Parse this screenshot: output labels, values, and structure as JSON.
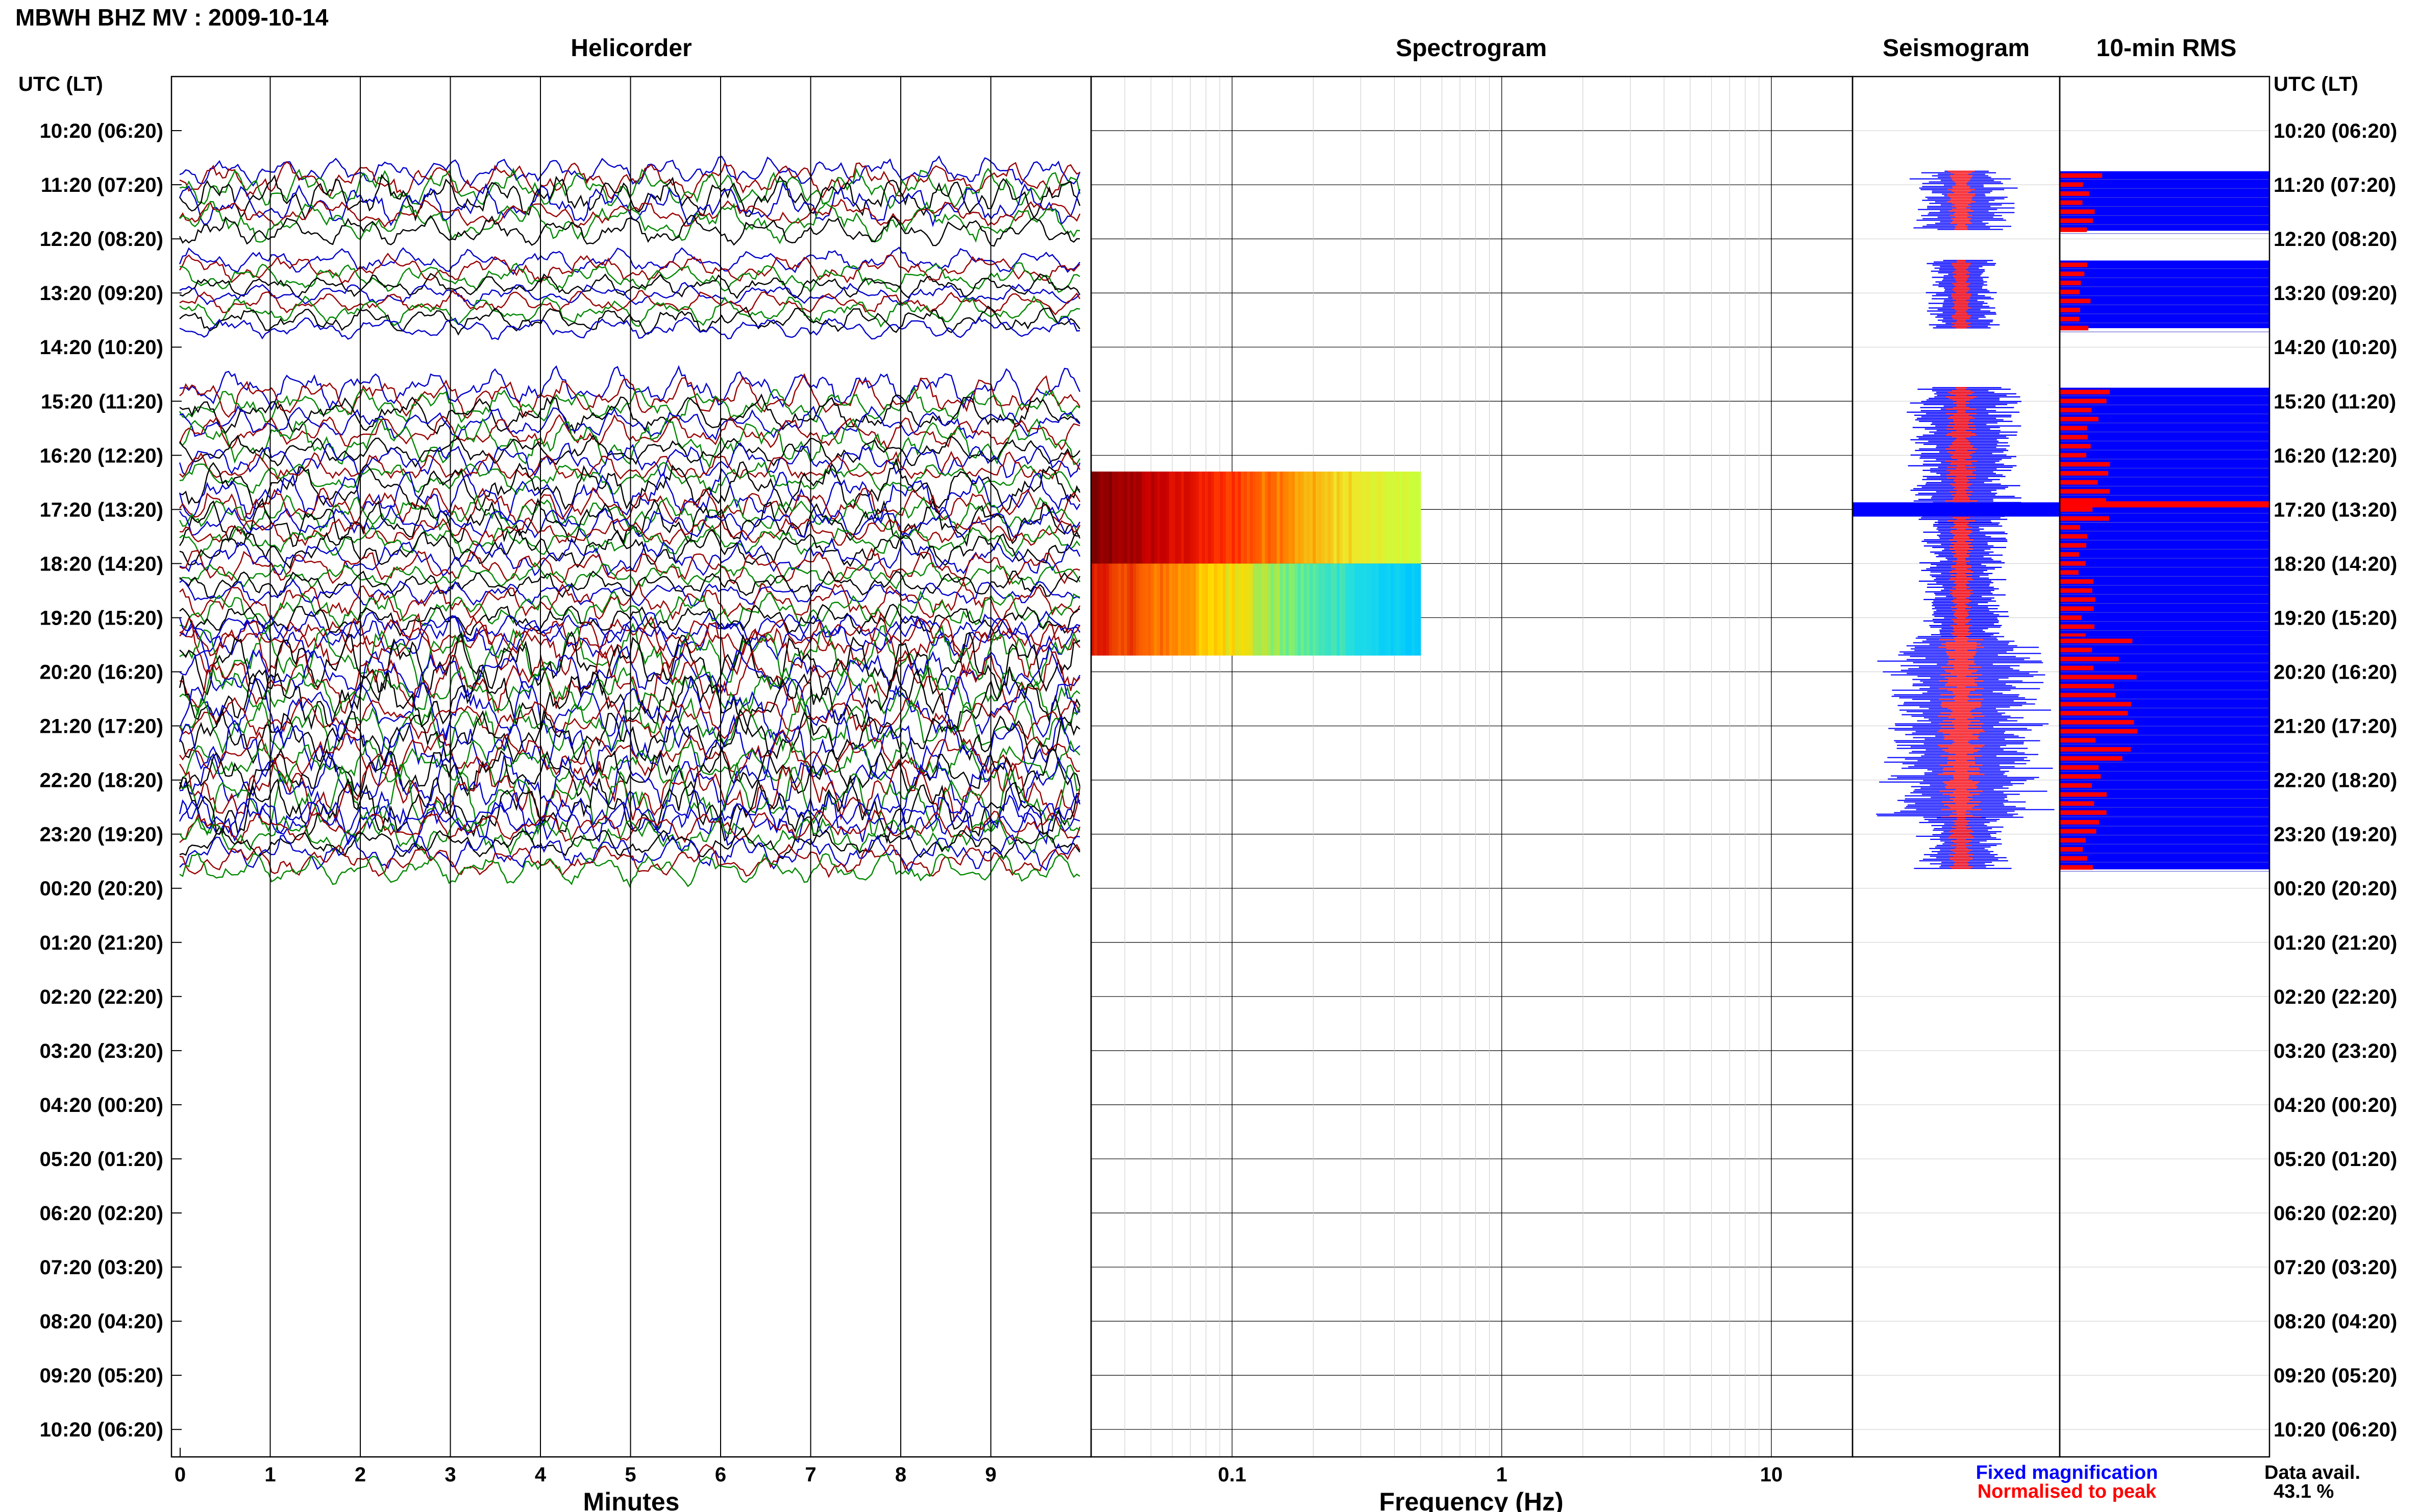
{
  "page": {
    "title": "MBWH BHZ MV : 2009-10-14"
  },
  "panels": {
    "helicorder": "Helicorder",
    "spectrogram": "Spectrogram",
    "seismogram": "Seismogram",
    "rms": "10-min RMS"
  },
  "time_axis": {
    "header_left": "UTC (LT)",
    "header_right": "UTC (LT)",
    "rows": [
      "10:20 (06:20)",
      "11:20 (07:20)",
      "12:20 (08:20)",
      "13:20 (09:20)",
      "14:20 (10:20)",
      "15:20 (11:20)",
      "16:20 (12:20)",
      "17:20 (13:20)",
      "18:20 (14:20)",
      "19:20 (15:20)",
      "20:20 (16:20)",
      "21:20 (17:20)",
      "22:20 (18:20)",
      "23:20 (19:20)",
      "00:20 (20:20)",
      "01:20 (21:20)",
      "02:20 (22:20)",
      "03:20 (23:20)",
      "04:20 (00:20)",
      "05:20 (01:20)",
      "06:20 (02:20)",
      "07:20 (03:20)",
      "08:20 (04:20)",
      "09:20 (05:20)",
      "10:20 (06:20)"
    ]
  },
  "x_axes": {
    "minutes_label": "Minutes",
    "minutes_ticks": [
      "0",
      "1",
      "2",
      "3",
      "4",
      "5",
      "6",
      "7",
      "8",
      "9"
    ],
    "frequency_label": "Frequency (Hz)",
    "frequency_ticks": [
      "0.1",
      "1",
      "10"
    ]
  },
  "legend": {
    "fixed": "Fixed magnification",
    "normalised": "Normalised to peak",
    "fixed_color": "#0000ff",
    "normalised_color": "#ff0000"
  },
  "availability": {
    "label": "Data avail.",
    "value": "43.1 %"
  },
  "colors": {
    "trace_colors": [
      "#0000cc",
      "#990000",
      "#008800",
      "#000000"
    ],
    "grid": "#000000"
  },
  "chart_data": {
    "type": "helicorder",
    "trace_window_minutes": 10,
    "data_segments_row_index": [
      {
        "start": 0.75,
        "end": 1.85,
        "activity": 0.5
      },
      {
        "start": 2.4,
        "end": 3.65,
        "activity": 0.3
      },
      {
        "start": 4.75,
        "end": 7.25,
        "activity": 0.6
      },
      {
        "start": 7.25,
        "end": 9.35,
        "activity": 0.4
      },
      {
        "start": 9.35,
        "end": 12.7,
        "activity": 0.95
      },
      {
        "start": 12.7,
        "end": 13.65,
        "activity": 0.45
      }
    ],
    "spectrogram": {
      "x_scale": "log",
      "xlim": [
        0.03,
        20
      ],
      "blocks": [
        {
          "row_start": 6.3,
          "row_end": 8.0,
          "f_min": 0.03,
          "f_max": 0.5,
          "palette": "hot"
        },
        {
          "row_start": 8.0,
          "row_end": 9.7,
          "f_min": 0.03,
          "f_max": 0.5,
          "palette": "cool"
        }
      ]
    },
    "rms_peak_row": 7.0
  }
}
